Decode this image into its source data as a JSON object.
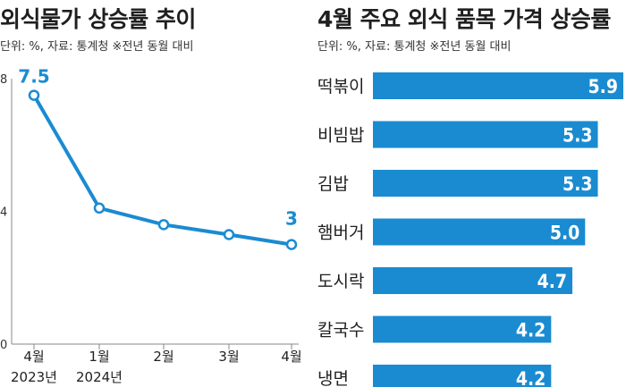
{
  "colors": {
    "accent": "#1a8bd1",
    "axis": "#888888",
    "text": "#1f1f1f"
  },
  "left": {
    "title": "외식물가 상승률 추이",
    "note": "단위: %, 자료: 통계청 ※전년 동월 대비"
  },
  "right": {
    "title": "4월 주요 외식 품목 가격 상승률",
    "note": "단위: %, 자료: 통계청 ※전년 동월 대비"
  },
  "chart_data": [
    {
      "type": "line",
      "title": "외식물가 상승률 추이",
      "subtitle": "단위: %, 자료: 통계청 ※전년 동월 대비",
      "categories": [
        [
          "4월",
          "2023년"
        ],
        [
          "1월",
          "2024년"
        ],
        [
          "2월",
          ""
        ],
        [
          "3월",
          ""
        ],
        [
          "4월",
          ""
        ]
      ],
      "values": [
        7.5,
        4.1,
        3.6,
        3.3,
        3.0
      ],
      "data_labels": [
        {
          "index": 0,
          "text": "7.5"
        },
        {
          "index": 4,
          "text": "3"
        }
      ],
      "yticks": [
        "8",
        "4",
        "0"
      ],
      "ylim": [
        0,
        8
      ],
      "grid": false
    },
    {
      "type": "bar",
      "orientation": "horizontal",
      "title": "4월 주요 외식 품목 가격 상승률",
      "subtitle": "단위: %, 자료: 통계청 ※전년 동월 대비",
      "categories": [
        "떡볶이",
        "비빔밥",
        "김밥",
        "햄버거",
        "도시락",
        "칼국수",
        "냉면"
      ],
      "values": [
        5.9,
        5.3,
        5.3,
        5.0,
        4.7,
        4.2,
        4.2
      ],
      "labels": [
        "5.9",
        "5.3",
        "5.3",
        "5.0",
        "4.7",
        "4.2",
        "4.2"
      ],
      "xlim": [
        0,
        5.9
      ],
      "grid": false
    }
  ]
}
